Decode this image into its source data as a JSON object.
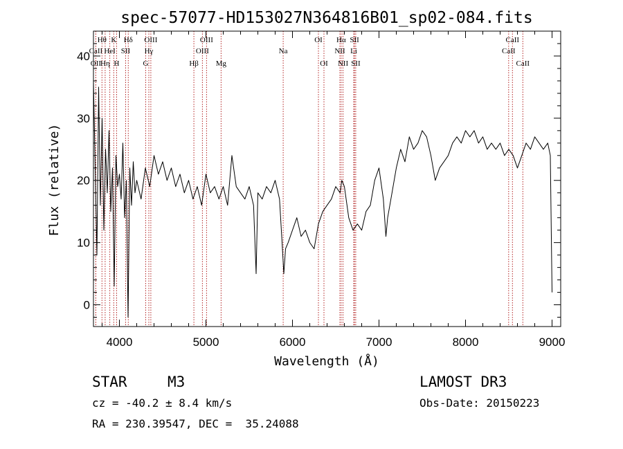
{
  "chart_data": {
    "type": "line",
    "title": "spec-57077-HD153027N364816B01_sp02-084.fits",
    "xlabel": "Wavelength (Å)",
    "ylabel": "Flux (relative)",
    "xlim": [
      3700,
      9100
    ],
    "ylim": [
      -3.5,
      44
    ],
    "x_ticks": [
      4000,
      5000,
      6000,
      7000,
      8000,
      9000
    ],
    "y_ticks": [
      0,
      10,
      20,
      30,
      40
    ],
    "series": [
      {
        "name": "flux",
        "x": [
          3700,
          3720,
          3740,
          3760,
          3780,
          3800,
          3820,
          3840,
          3860,
          3880,
          3900,
          3920,
          3940,
          3960,
          3980,
          4000,
          4020,
          4040,
          4060,
          4080,
          4100,
          4120,
          4140,
          4160,
          4180,
          4200,
          4250,
          4300,
          4350,
          4400,
          4450,
          4500,
          4550,
          4600,
          4650,
          4700,
          4750,
          4800,
          4850,
          4900,
          4950,
          5000,
          5050,
          5100,
          5150,
          5200,
          5250,
          5300,
          5350,
          5400,
          5450,
          5500,
          5550,
          5580,
          5600,
          5650,
          5700,
          5750,
          5800,
          5850,
          5880,
          5900,
          5920,
          5950,
          6000,
          6050,
          6100,
          6150,
          6200,
          6250,
          6300,
          6350,
          6400,
          6450,
          6500,
          6550,
          6570,
          6600,
          6650,
          6700,
          6750,
          6800,
          6850,
          6900,
          6950,
          7000,
          7050,
          7080,
          7100,
          7150,
          7200,
          7250,
          7300,
          7350,
          7400,
          7450,
          7500,
          7550,
          7600,
          7650,
          7700,
          7750,
          7800,
          7850,
          7900,
          7950,
          8000,
          8050,
          8100,
          8150,
          8200,
          8250,
          8300,
          8350,
          8400,
          8450,
          8500,
          8550,
          8600,
          8650,
          8700,
          8750,
          8800,
          8850,
          8900,
          8950,
          8980,
          9000
        ],
        "values": [
          36,
          22,
          8,
          35,
          16,
          30,
          12,
          25,
          18,
          28,
          15,
          22,
          3,
          24,
          19,
          21,
          17,
          26,
          14,
          20,
          -2,
          22,
          16,
          23,
          18,
          20,
          17,
          22,
          19,
          24,
          21,
          23,
          20,
          22,
          19,
          21,
          18,
          20,
          17,
          19,
          16,
          21,
          18,
          19,
          17,
          19,
          16,
          24,
          19,
          18,
          17,
          19,
          16,
          5,
          18,
          17,
          19,
          18,
          20,
          17,
          10,
          5,
          9,
          10,
          12,
          14,
          11,
          12,
          10,
          9,
          13,
          15,
          16,
          17,
          19,
          18,
          20,
          19,
          14,
          12,
          13,
          12,
          15,
          16,
          20,
          22,
          17,
          11,
          14,
          18,
          22,
          25,
          23,
          27,
          25,
          26,
          28,
          27,
          24,
          20,
          22,
          23,
          24,
          26,
          27,
          26,
          28,
          27,
          28,
          26,
          27,
          25,
          26,
          25,
          26,
          24,
          25,
          24,
          22,
          24,
          26,
          25,
          27,
          26,
          25,
          26,
          24,
          2
        ]
      }
    ],
    "lines": [
      {
        "label": "Hθ",
        "wl": 3798,
        "row": 0
      },
      {
        "label": "CaII",
        "wl": 3727,
        "row": 1
      },
      {
        "label": "OII",
        "wl": 3727,
        "row": 2
      },
      {
        "label": "K",
        "wl": 3934,
        "row": 0
      },
      {
        "label": "HeI",
        "wl": 3889,
        "row": 1
      },
      {
        "label": "Hη",
        "wl": 3835,
        "row": 2
      },
      {
        "label": "Hδ",
        "wl": 4102,
        "row": 0
      },
      {
        "label": "SII",
        "wl": 4072,
        "row": 1
      },
      {
        "label": "H",
        "wl": 3968,
        "row": 2
      },
      {
        "label": "OIII",
        "wl": 4363,
        "row": 0
      },
      {
        "label": "Hγ",
        "wl": 4340,
        "row": 1
      },
      {
        "label": "G",
        "wl": 4304,
        "row": 2
      },
      {
        "label": "Hβ",
        "wl": 4861,
        "row": 2
      },
      {
        "label": "OIII",
        "wl": 5007,
        "row": 0
      },
      {
        "label": "OIII",
        "wl": 4959,
        "row": 1
      },
      {
        "label": "Mg",
        "wl": 5175,
        "row": 2
      },
      {
        "label": "Na",
        "wl": 5893,
        "row": 1
      },
      {
        "label": "OI",
        "wl": 6300,
        "row": 0
      },
      {
        "label": "OI",
        "wl": 6364,
        "row": 2
      },
      {
        "label": "Hα",
        "wl": 6563,
        "row": 0
      },
      {
        "label": "SII",
        "wl": 6717,
        "row": 0
      },
      {
        "label": "NII",
        "wl": 6548,
        "row": 1
      },
      {
        "label": "Li",
        "wl": 6708,
        "row": 1
      },
      {
        "label": "NII",
        "wl": 6584,
        "row": 2
      },
      {
        "label": "SII",
        "wl": 6731,
        "row": 2
      },
      {
        "label": "CaII",
        "wl": 8542,
        "row": 0
      },
      {
        "label": "CaII",
        "wl": 8498,
        "row": 1
      },
      {
        "label": "CaII",
        "wl": 8662,
        "row": 2
      }
    ],
    "colors": {
      "line": "#000000",
      "marker": "#b22222"
    }
  },
  "info": {
    "object_class": "STAR",
    "subclass": "M3",
    "catalog": "LAMOST DR3",
    "cz": "cz = -40.2 ± 8.4 km/s",
    "obs_date": "Obs-Date: 20150223",
    "coords": "RA = 230.39547, DEC =  35.24088"
  }
}
